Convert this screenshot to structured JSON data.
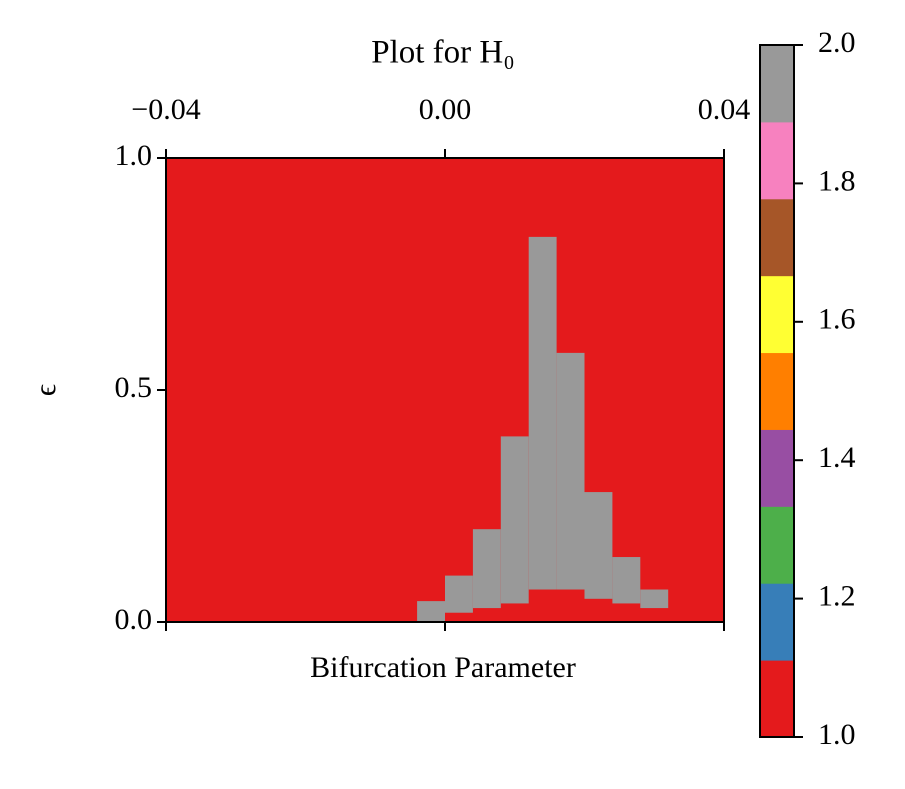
{
  "chart_data": {
    "type": "heatmap",
    "title": "Plot for H₀",
    "xlabel": "Bifurcation Parameter",
    "ylabel": "ϵ",
    "xlim": [
      -0.04,
      0.04
    ],
    "ylim": [
      0,
      1
    ],
    "xticks": [
      {
        "value": -0.04,
        "label": "−0.04"
      },
      {
        "value": 0,
        "label": "0.00"
      },
      {
        "value": 0.04,
        "label": "0.04"
      }
    ],
    "yticks": [
      {
        "value": 0,
        "label": "0.0"
      },
      {
        "value": 0.5,
        "label": "0.5"
      },
      {
        "value": 1,
        "label": "1.0"
      }
    ],
    "background_value": 1,
    "cells": [
      {
        "x": [
          -0.004,
          0
        ],
        "y": [
          0,
          0.045
        ],
        "value": 2
      },
      {
        "x": [
          0,
          0.004
        ],
        "y": [
          0.02,
          0.1
        ],
        "value": 2
      },
      {
        "x": [
          0.004,
          0.008
        ],
        "y": [
          0.03,
          0.2
        ],
        "value": 2
      },
      {
        "x": [
          0.008,
          0.012
        ],
        "y": [
          0.04,
          0.4
        ],
        "value": 2
      },
      {
        "x": [
          0.012,
          0.016
        ],
        "y": [
          0.07,
          0.83
        ],
        "value": 2
      },
      {
        "x": [
          0.016,
          0.02
        ],
        "y": [
          0.07,
          0.58
        ],
        "value": 2
      },
      {
        "x": [
          0.02,
          0.024
        ],
        "y": [
          0.05,
          0.28
        ],
        "value": 2
      },
      {
        "x": [
          0.024,
          0.028
        ],
        "y": [
          0.04,
          0.14
        ],
        "value": 2
      },
      {
        "x": [
          0.028,
          0.032
        ],
        "y": [
          0.03,
          0.07
        ],
        "value": 2
      }
    ],
    "colormap": [
      "#e41a1c",
      "#377eb8",
      "#4daf4a",
      "#984ea3",
      "#ff7f00",
      "#ffff33",
      "#a65628",
      "#f781bf",
      "#999999"
    ],
    "clim": [
      1,
      2
    ],
    "cticks": [
      {
        "value": 1,
        "label": "1.0"
      },
      {
        "value": 1.2,
        "label": "1.2"
      },
      {
        "value": 1.4,
        "label": "1.4"
      },
      {
        "value": 1.6,
        "label": "1.6"
      },
      {
        "value": 1.8,
        "label": "1.8"
      },
      {
        "value": 2,
        "label": "2.0"
      }
    ]
  }
}
